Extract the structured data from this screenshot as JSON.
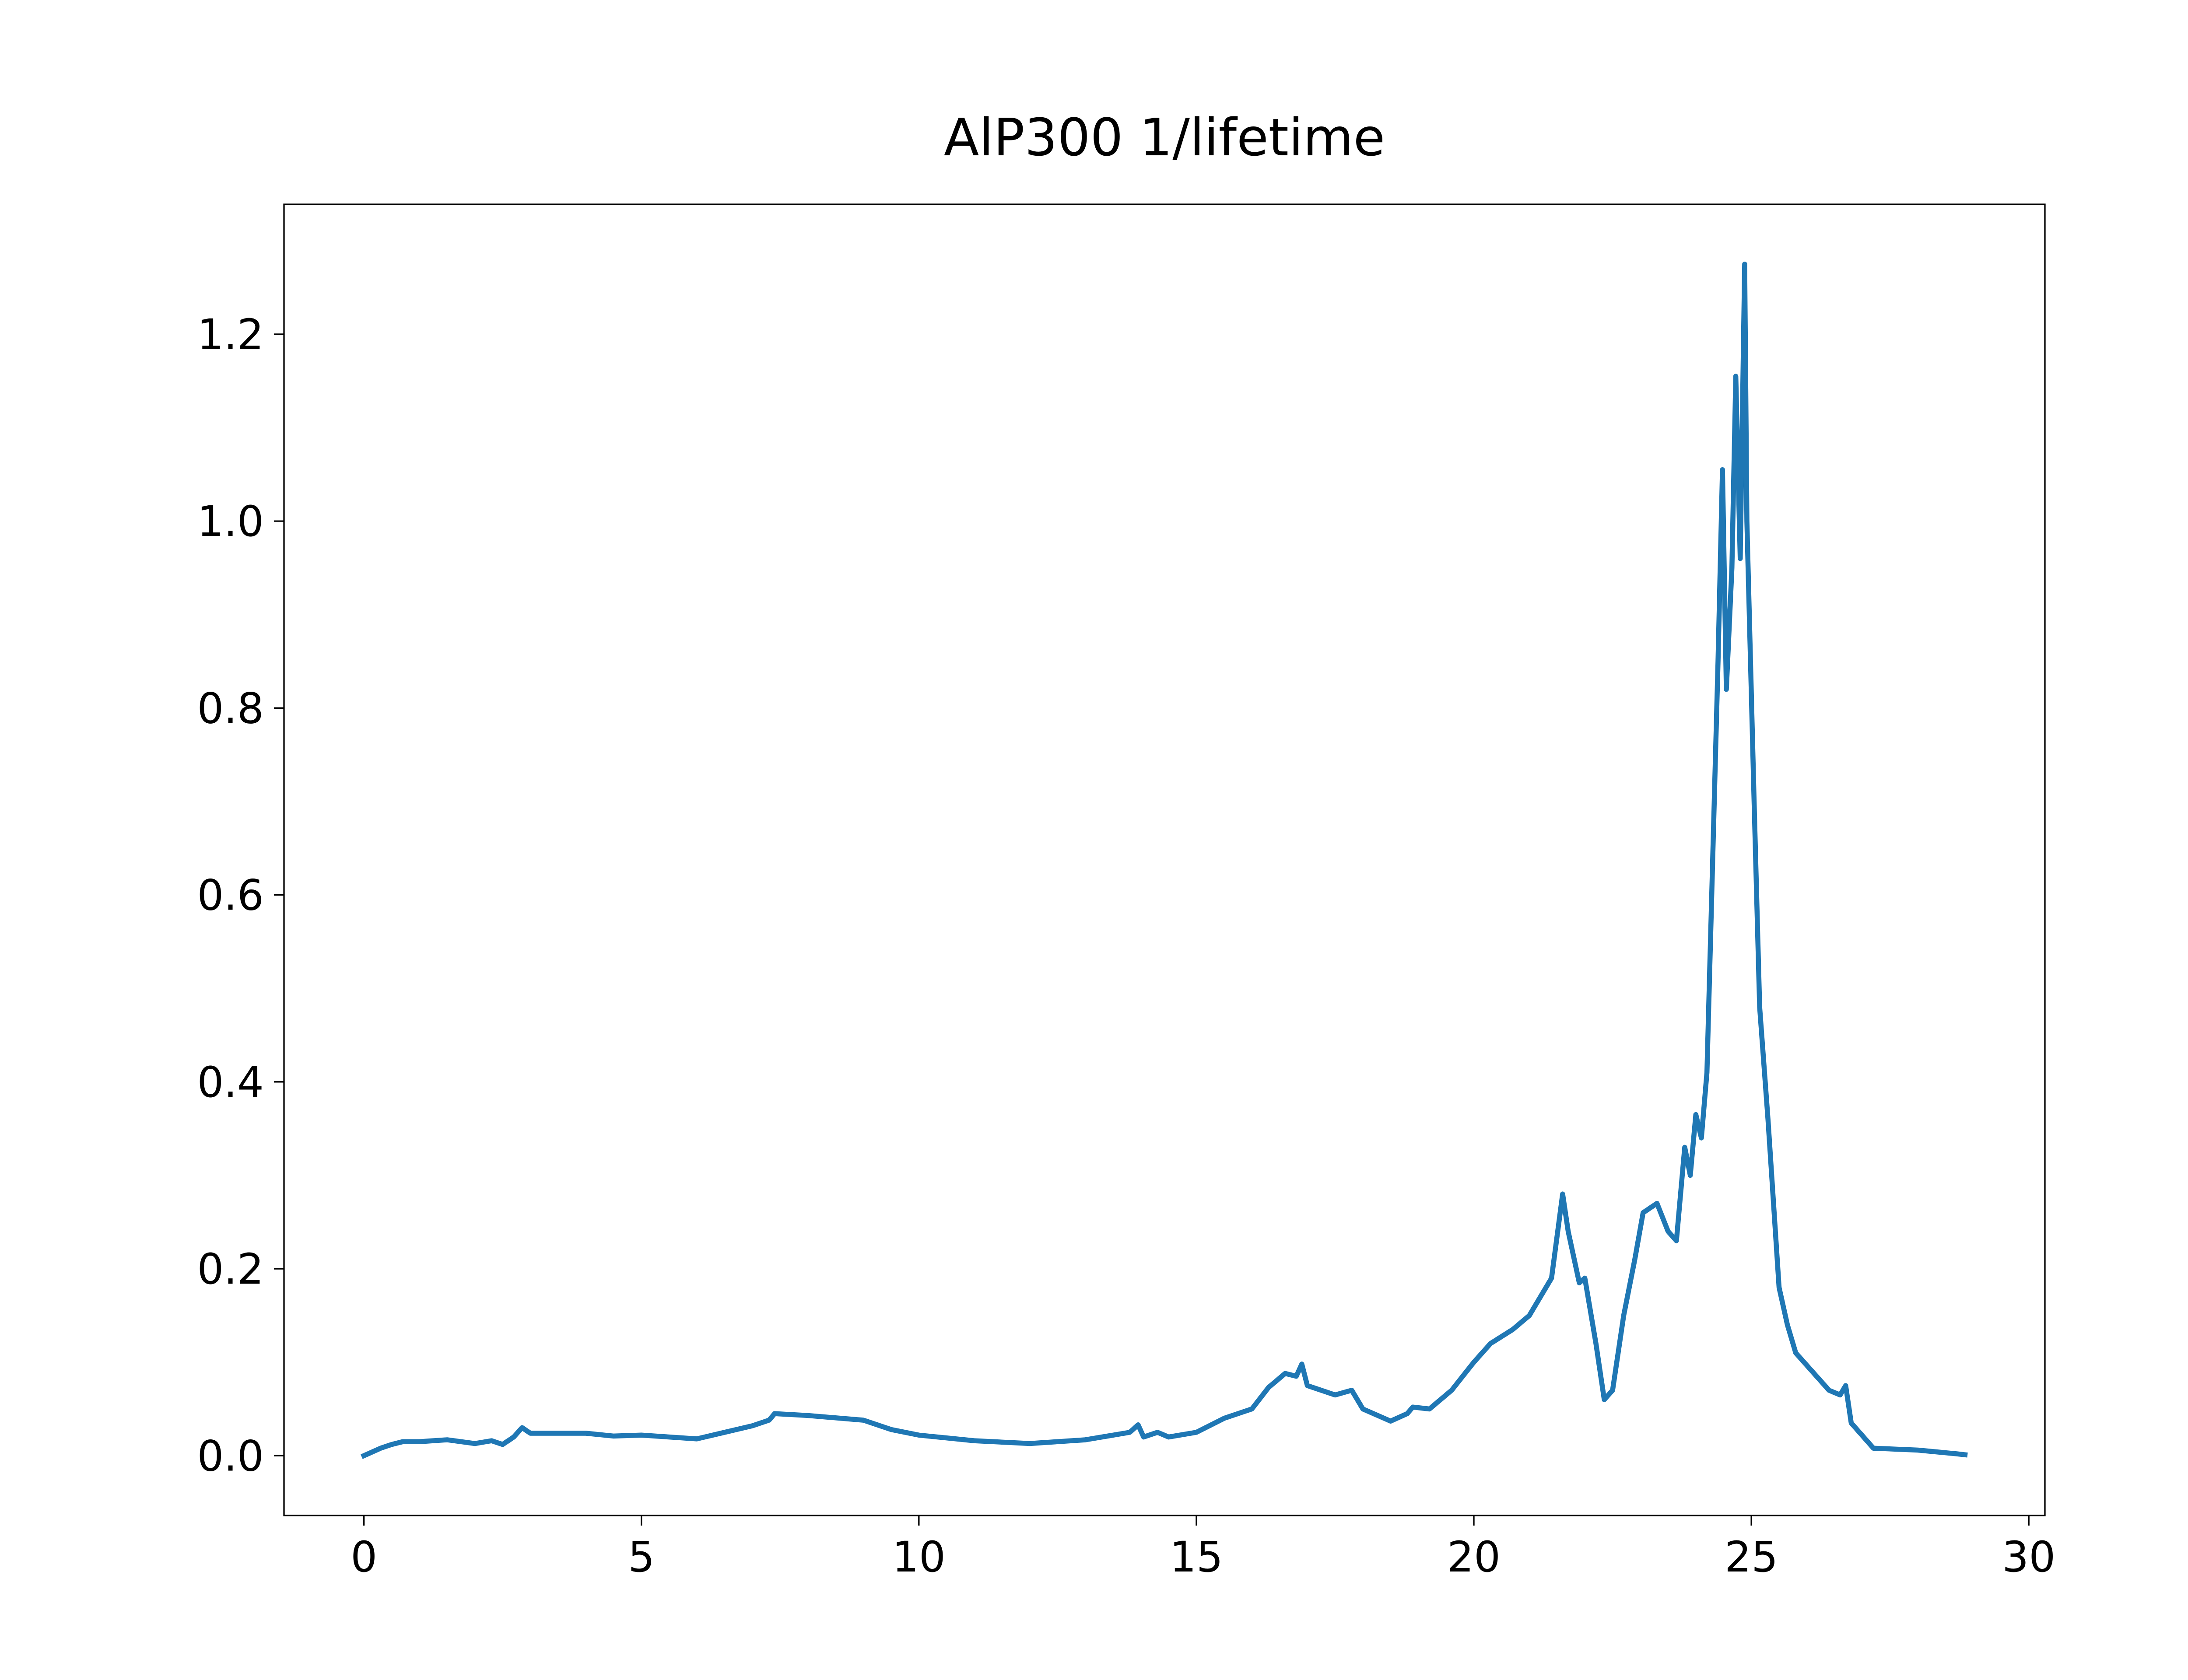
{
  "chart_data": {
    "type": "line",
    "title": "AlP300 1/lifetime",
    "color": "#1f77b4",
    "x": [
      0,
      0.3,
      0.5,
      0.7,
      1.0,
      1.5,
      2.0,
      2.3,
      2.5,
      2.7,
      2.85,
      3.0,
      4.0,
      4.5,
      5.0,
      6.0,
      6.5,
      7.0,
      7.3,
      7.4,
      8.0,
      9.0,
      9.5,
      10.0,
      11.0,
      12.0,
      13.0,
      13.8,
      13.95,
      14.05,
      14.3,
      14.5,
      15.0,
      15.5,
      16.0,
      16.3,
      16.6,
      16.8,
      16.9,
      17.0,
      17.5,
      17.8,
      18.0,
      18.5,
      18.8,
      18.9,
      19.2,
      19.6,
      20.0,
      20.3,
      20.7,
      21.0,
      21.4,
      21.6,
      21.7,
      21.9,
      22.0,
      22.2,
      22.35,
      22.5,
      22.7,
      22.9,
      23.05,
      23.3,
      23.5,
      23.65,
      23.8,
      23.9,
      24.0,
      24.1,
      24.2,
      24.3,
      24.4,
      24.48,
      24.55,
      24.65,
      24.72,
      24.8,
      24.88,
      24.92,
      25.05,
      25.15,
      25.3,
      25.5,
      25.65,
      25.8,
      26.1,
      26.4,
      26.6,
      26.7,
      26.8,
      27.2,
      28.0,
      28.7,
      28.85
    ],
    "values": [
      0.0,
      0.008,
      0.012,
      0.015,
      0.015,
      0.017,
      0.013,
      0.016,
      0.012,
      0.02,
      0.03,
      0.024,
      0.024,
      0.021,
      0.022,
      0.018,
      0.025,
      0.032,
      0.038,
      0.045,
      0.043,
      0.038,
      0.028,
      0.022,
      0.016,
      0.013,
      0.017,
      0.025,
      0.033,
      0.02,
      0.025,
      0.02,
      0.025,
      0.04,
      0.05,
      0.073,
      0.088,
      0.085,
      0.098,
      0.075,
      0.065,
      0.07,
      0.05,
      0.037,
      0.045,
      0.052,
      0.05,
      0.07,
      0.1,
      0.12,
      0.135,
      0.15,
      0.19,
      0.28,
      0.24,
      0.185,
      0.19,
      0.12,
      0.06,
      0.07,
      0.15,
      0.21,
      0.26,
      0.27,
      0.24,
      0.23,
      0.33,
      0.3,
      0.365,
      0.34,
      0.41,
      0.63,
      0.85,
      1.055,
      0.82,
      0.95,
      1.155,
      0.96,
      1.275,
      1.0,
      0.7,
      0.48,
      0.36,
      0.18,
      0.14,
      0.11,
      0.09,
      0.07,
      0.065,
      0.075,
      0.035,
      0.008,
      0.006,
      0.002,
      0.001
    ],
    "xlim": [
      -1.44,
      30.29
    ],
    "ylim": [
      -0.064,
      1.339
    ],
    "xticks": [
      0,
      5,
      10,
      15,
      20,
      25,
      30
    ],
    "yticks": [
      {
        "value": 0,
        "label": "0.0"
      },
      0.2,
      0.4,
      0.6,
      0.8,
      {
        "value": 1,
        "label": "1.0"
      },
      1.2
    ],
    "grid": false
  }
}
